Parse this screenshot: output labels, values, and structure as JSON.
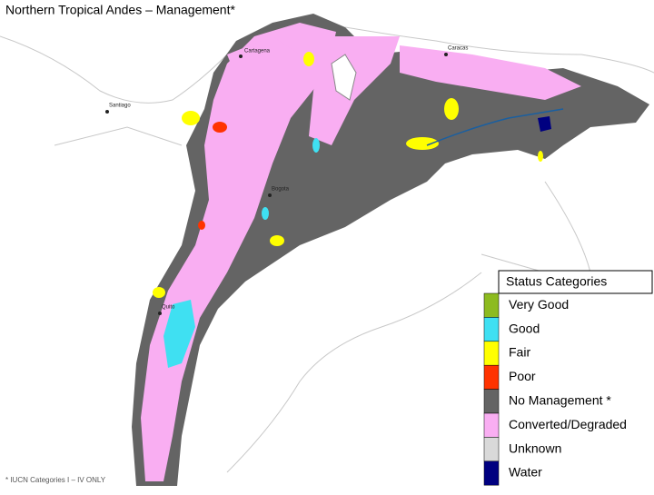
{
  "title": "Northern Tropical Andes – Management*",
  "cities": [
    "Cartagena",
    "Caracas",
    "Santiago",
    "Bogota",
    "Quito"
  ],
  "legend": {
    "title": "Status Categories",
    "items": [
      {
        "label": "Very Good",
        "color": "#8dbb1f"
      },
      {
        "label": "Good",
        "color": "#3fe0f2"
      },
      {
        "label": "Fair",
        "color": "#ffff00"
      },
      {
        "label": "Poor",
        "color": "#ff3300"
      },
      {
        "label": "No Management *",
        "color": "#646464"
      },
      {
        "label": "Converted/Degraded",
        "color": "#f9aef2"
      },
      {
        "label": "Unknown",
        "color": "#d9d9d9"
      },
      {
        "label": "Water",
        "color": "#000080"
      }
    ]
  },
  "footnote": "* IUCN Categories I – IV ONLY"
}
